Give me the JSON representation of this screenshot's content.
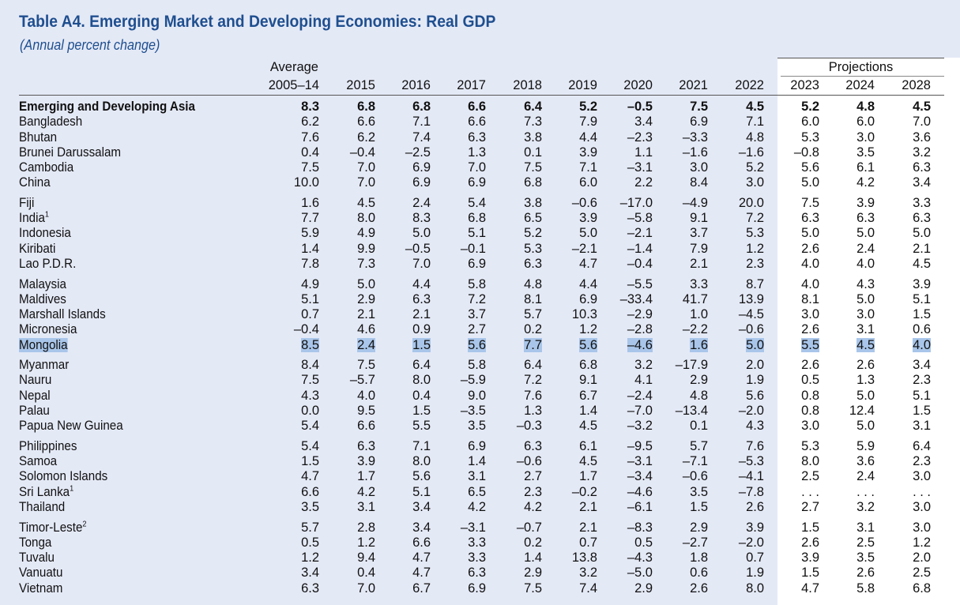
{
  "title": "Table A4. Emerging Market and Developing Economies: Real GDP",
  "subtitle": "(Annual percent change)",
  "header": {
    "average_label": "Average",
    "projections_label": "Projections",
    "columns": [
      "2005–14",
      "2015",
      "2016",
      "2017",
      "2018",
      "2019",
      "2020",
      "2021",
      "2022",
      "2023",
      "2024",
      "2028"
    ]
  },
  "highlighted_row": "Mongolia",
  "groups": [
    [
      {
        "name": "Emerging and Developing Asia",
        "note": "",
        "bold": true,
        "values": [
          "8.3",
          "6.8",
          "6.8",
          "6.6",
          "6.4",
          "5.2",
          "–0.5",
          "7.5",
          "4.5",
          "5.2",
          "4.8",
          "4.5"
        ]
      },
      {
        "name": "Bangladesh",
        "note": "",
        "values": [
          "6.2",
          "6.6",
          "7.1",
          "6.6",
          "7.3",
          "7.9",
          "3.4",
          "6.9",
          "7.1",
          "6.0",
          "6.0",
          "7.0"
        ]
      },
      {
        "name": "Bhutan",
        "note": "",
        "values": [
          "7.6",
          "6.2",
          "7.4",
          "6.3",
          "3.8",
          "4.4",
          "–2.3",
          "–3.3",
          "4.8",
          "5.3",
          "3.0",
          "3.6"
        ]
      },
      {
        "name": "Brunei Darussalam",
        "note": "",
        "values": [
          "0.4",
          "–0.4",
          "–2.5",
          "1.3",
          "0.1",
          "3.9",
          "1.1",
          "–1.6",
          "–1.6",
          "–0.8",
          "3.5",
          "3.2"
        ]
      },
      {
        "name": "Cambodia",
        "note": "",
        "values": [
          "7.5",
          "7.0",
          "6.9",
          "7.0",
          "7.5",
          "7.1",
          "–3.1",
          "3.0",
          "5.2",
          "5.6",
          "6.1",
          "6.3"
        ]
      },
      {
        "name": "China",
        "note": "",
        "values": [
          "10.0",
          "7.0",
          "6.9",
          "6.9",
          "6.8",
          "6.0",
          "2.2",
          "8.4",
          "3.0",
          "5.0",
          "4.2",
          "3.4"
        ]
      }
    ],
    [
      {
        "name": "Fiji",
        "note": "",
        "values": [
          "1.6",
          "4.5",
          "2.4",
          "5.4",
          "3.8",
          "–0.6",
          "–17.0",
          "–4.9",
          "20.0",
          "7.5",
          "3.9",
          "3.3"
        ]
      },
      {
        "name": "India",
        "note": "1",
        "values": [
          "7.7",
          "8.0",
          "8.3",
          "6.8",
          "6.5",
          "3.9",
          "–5.8",
          "9.1",
          "7.2",
          "6.3",
          "6.3",
          "6.3"
        ]
      },
      {
        "name": "Indonesia",
        "note": "",
        "values": [
          "5.9",
          "4.9",
          "5.0",
          "5.1",
          "5.2",
          "5.0",
          "–2.1",
          "3.7",
          "5.3",
          "5.0",
          "5.0",
          "5.0"
        ]
      },
      {
        "name": "Kiribati",
        "note": "",
        "values": [
          "1.4",
          "9.9",
          "–0.5",
          "–0.1",
          "5.3",
          "–2.1",
          "–1.4",
          "7.9",
          "1.2",
          "2.6",
          "2.4",
          "2.1"
        ]
      },
      {
        "name": "Lao P.D.R.",
        "note": "",
        "values": [
          "7.8",
          "7.3",
          "7.0",
          "6.9",
          "6.3",
          "4.7",
          "–0.4",
          "2.1",
          "2.3",
          "4.0",
          "4.0",
          "4.5"
        ]
      }
    ],
    [
      {
        "name": "Malaysia",
        "note": "",
        "values": [
          "4.9",
          "5.0",
          "4.4",
          "5.8",
          "4.8",
          "4.4",
          "–5.5",
          "3.3",
          "8.7",
          "4.0",
          "4.3",
          "3.9"
        ]
      },
      {
        "name": "Maldives",
        "note": "",
        "values": [
          "5.1",
          "2.9",
          "6.3",
          "7.2",
          "8.1",
          "6.9",
          "–33.4",
          "41.7",
          "13.9",
          "8.1",
          "5.0",
          "5.1"
        ]
      },
      {
        "name": "Marshall Islands",
        "note": "",
        "values": [
          "0.7",
          "2.1",
          "2.1",
          "3.7",
          "5.7",
          "10.3",
          "–2.9",
          "1.0",
          "–4.5",
          "3.0",
          "3.0",
          "1.5"
        ]
      },
      {
        "name": "Micronesia",
        "note": "",
        "values": [
          "–0.4",
          "4.6",
          "0.9",
          "2.7",
          "0.2",
          "1.2",
          "–2.8",
          "–2.2",
          "–0.6",
          "2.6",
          "3.1",
          "0.6"
        ]
      },
      {
        "name": "Mongolia",
        "note": "",
        "values": [
          "8.5",
          "2.4",
          "1.5",
          "5.6",
          "7.7",
          "5.6",
          "–4.6",
          "1.6",
          "5.0",
          "5.5",
          "4.5",
          "4.0"
        ]
      }
    ],
    [
      {
        "name": "Myanmar",
        "note": "",
        "values": [
          "8.4",
          "7.5",
          "6.4",
          "5.8",
          "6.4",
          "6.8",
          "3.2",
          "–17.9",
          "2.0",
          "2.6",
          "2.6",
          "3.4"
        ]
      },
      {
        "name": "Nauru",
        "note": "",
        "values": [
          "7.5",
          "–5.7",
          "8.0",
          "–5.9",
          "7.2",
          "9.1",
          "4.1",
          "2.9",
          "1.9",
          "0.5",
          "1.3",
          "2.3"
        ]
      },
      {
        "name": "Nepal",
        "note": "",
        "values": [
          "4.3",
          "4.0",
          "0.4",
          "9.0",
          "7.6",
          "6.7",
          "–2.4",
          "4.8",
          "5.6",
          "0.8",
          "5.0",
          "5.1"
        ]
      },
      {
        "name": "Palau",
        "note": "",
        "values": [
          "0.0",
          "9.5",
          "1.5",
          "–3.5",
          "1.3",
          "1.4",
          "–7.0",
          "–13.4",
          "–2.0",
          "0.8",
          "12.4",
          "1.5"
        ]
      },
      {
        "name": "Papua New Guinea",
        "note": "",
        "values": [
          "5.4",
          "6.6",
          "5.5",
          "3.5",
          "–0.3",
          "4.5",
          "–3.2",
          "0.1",
          "4.3",
          "3.0",
          "5.0",
          "3.1"
        ]
      }
    ],
    [
      {
        "name": "Philippines",
        "note": "",
        "values": [
          "5.4",
          "6.3",
          "7.1",
          "6.9",
          "6.3",
          "6.1",
          "–9.5",
          "5.7",
          "7.6",
          "5.3",
          "5.9",
          "6.4"
        ]
      },
      {
        "name": "Samoa",
        "note": "",
        "values": [
          "1.5",
          "3.9",
          "8.0",
          "1.4",
          "–0.6",
          "4.5",
          "–3.1",
          "–7.1",
          "–5.3",
          "8.0",
          "3.6",
          "2.3"
        ]
      },
      {
        "name": "Solomon Islands",
        "note": "",
        "values": [
          "4.7",
          "1.7",
          "5.6",
          "3.1",
          "2.7",
          "1.7",
          "–3.4",
          "–0.6",
          "–4.1",
          "2.5",
          "2.4",
          "3.0"
        ]
      },
      {
        "name": "Sri Lanka",
        "note": "1",
        "values": [
          "6.6",
          "4.2",
          "5.1",
          "6.5",
          "2.3",
          "–0.2",
          "–4.6",
          "3.5",
          "–7.8",
          ". . .",
          ". . .",
          ". . ."
        ]
      },
      {
        "name": "Thailand",
        "note": "",
        "values": [
          "3.5",
          "3.1",
          "3.4",
          "4.2",
          "4.2",
          "2.1",
          "–6.1",
          "1.5",
          "2.6",
          "2.7",
          "3.2",
          "3.0"
        ]
      }
    ],
    [
      {
        "name": "Timor-Leste",
        "note": "2",
        "values": [
          "5.7",
          "2.8",
          "3.4",
          "–3.1",
          "–0.7",
          "2.1",
          "–8.3",
          "2.9",
          "3.9",
          "1.5",
          "3.1",
          "3.0"
        ]
      },
      {
        "name": "Tonga",
        "note": "",
        "values": [
          "0.5",
          "1.2",
          "6.6",
          "3.3",
          "0.2",
          "0.7",
          "0.5",
          "–2.7",
          "–2.0",
          "2.6",
          "2.5",
          "1.2"
        ]
      },
      {
        "name": "Tuvalu",
        "note": "",
        "values": [
          "1.2",
          "9.4",
          "4.7",
          "3.3",
          "1.4",
          "13.8",
          "–4.3",
          "1.8",
          "0.7",
          "3.9",
          "3.5",
          "2.0"
        ]
      },
      {
        "name": "Vanuatu",
        "note": "",
        "values": [
          "3.4",
          "0.4",
          "4.7",
          "6.3",
          "2.9",
          "3.2",
          "–5.0",
          "0.6",
          "1.9",
          "1.5",
          "2.6",
          "2.5"
        ]
      },
      {
        "name": "Vietnam",
        "note": "",
        "values": [
          "6.3",
          "7.0",
          "6.7",
          "6.9",
          "7.5",
          "7.4",
          "2.9",
          "2.6",
          "8.0",
          "4.7",
          "5.8",
          "6.8"
        ]
      }
    ]
  ]
}
